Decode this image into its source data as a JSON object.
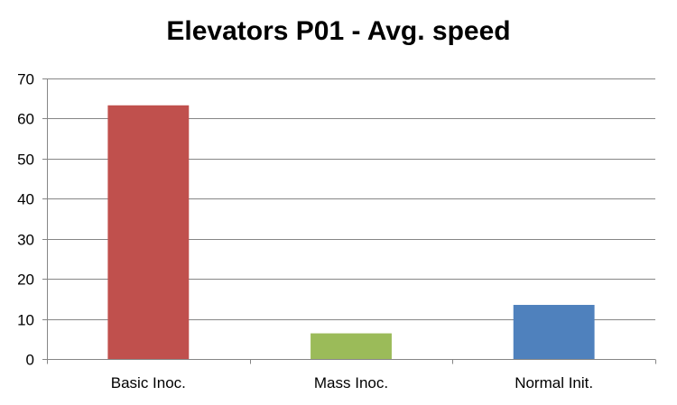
{
  "chart_data": {
    "type": "bar",
    "title": "Elevators P01 - Avg. speed",
    "categories": [
      "Basic Inoc.",
      "Mass Inoc.",
      "Normal Init."
    ],
    "values": [
      63.3,
      6.4,
      13.5
    ],
    "colors": [
      "#c0504d",
      "#9bbb59",
      "#4f81bd"
    ],
    "ylim": [
      0,
      70
    ],
    "yticks": [
      0,
      10,
      20,
      30,
      40,
      50,
      60,
      70
    ],
    "grid": true,
    "legend": "none",
    "xlabel": "",
    "ylabel": ""
  }
}
